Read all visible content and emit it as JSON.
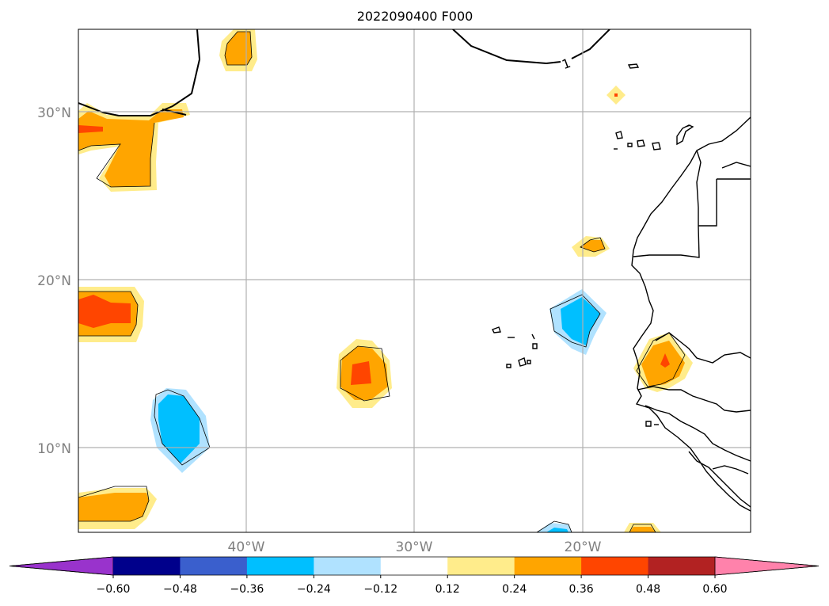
{
  "title": "2022090400 F000",
  "latitude_labels": [
    "30°N",
    "20°N",
    "10°N"
  ],
  "longitude_labels": [
    "40°W",
    "30°W",
    "20°W"
  ],
  "contour_label": "1",
  "colorbar": {
    "ticks": [
      "−0.60",
      "−0.48",
      "−0.36",
      "−0.24",
      "−0.12",
      "0.12",
      "0.24",
      "0.36",
      "0.48",
      "0.60"
    ],
    "colors": [
      "#9933cc",
      "#00008b",
      "#3a5fcd",
      "#00bfff",
      "#b0e2ff",
      "#ffffff",
      "#ffec8b",
      "#ffa500",
      "#ff4500",
      "#b22222",
      "#ff82ab"
    ]
  },
  "fill_colors": {
    "pos_light": "#ffec8b",
    "pos_mid": "#ffa500",
    "pos_high": "#ff4500",
    "neg_light": "#b0e2ff",
    "neg_mid": "#00bfff"
  }
}
